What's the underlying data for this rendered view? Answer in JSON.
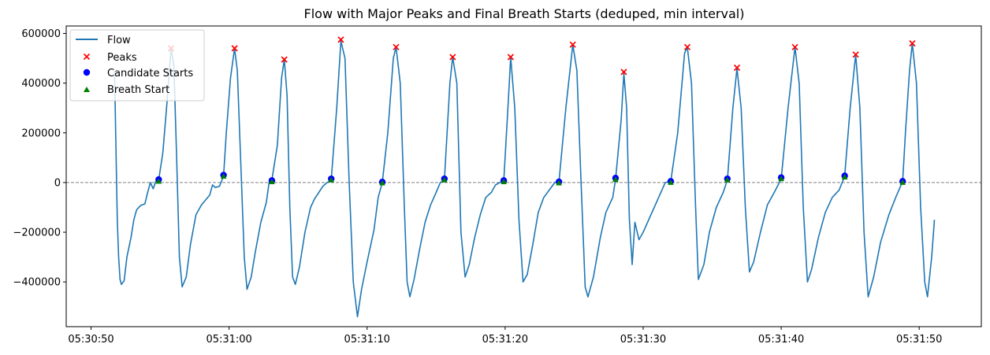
{
  "chart_data": {
    "type": "line",
    "title": "Flow with Major Peaks and Final Breath Starts (deduped, min interval)",
    "xlabel": "",
    "ylabel": "",
    "x_unit": "time (HH:MM:SS)",
    "xlim": [
      "05:30:48.2",
      "05:31:54.5"
    ],
    "ylim": [
      -580000,
      630000
    ],
    "x_ticks": [
      "05:30:50",
      "05:31:00",
      "05:31:10",
      "05:31:20",
      "05:31:30",
      "05:31:40",
      "05:31:50"
    ],
    "y_ticks": [
      600000,
      400000,
      200000,
      0,
      -200000,
      -400000
    ],
    "y_tick_labels": [
      "600000",
      "400000",
      "200000",
      "0",
      "−200000",
      "−400000"
    ],
    "zero_line": {
      "value": 0,
      "style": "dashed",
      "color": "#808080"
    },
    "grid": false,
    "legend_position": "upper-left",
    "colors": {
      "flow": "#1f77b4",
      "peaks": "#ff0000",
      "candidates": "#0000ff",
      "breath_start": "#008000"
    },
    "series": [
      {
        "name": "Flow",
        "type": "line",
        "points": [
          [
            "05:30:51.7",
            450000
          ],
          [
            "05:30:51.9",
            -150000
          ],
          [
            "05:30:52.0",
            -300000
          ],
          [
            "05:30:52.1",
            -390000
          ],
          [
            "05:30:52.2",
            -410000
          ],
          [
            "05:30:52.4",
            -395000
          ],
          [
            "05:30:52.6",
            -300000
          ],
          [
            "05:30:52.9",
            -220000
          ],
          [
            "05:30:53.1",
            -150000
          ],
          [
            "05:30:53.3",
            -110000
          ],
          [
            "05:30:53.6",
            -92000
          ],
          [
            "05:30:53.9",
            -86000
          ],
          [
            "05:30:54.1",
            -40000
          ],
          [
            "05:30:54.3",
            0
          ],
          [
            "05:30:54.5",
            -25000
          ],
          [
            "05:30:54.7",
            5000
          ],
          [
            "05:30:54.9",
            10000
          ],
          [
            "05:30:55.2",
            120000
          ],
          [
            "05:30:55.5",
            320000
          ],
          [
            "05:30:55.8",
            540000
          ],
          [
            "05:30:56.0",
            470000
          ],
          [
            "05:30:56.2",
            100000
          ],
          [
            "05:30:56.4",
            -300000
          ],
          [
            "05:30:56.6",
            -420000
          ],
          [
            "05:30:56.9",
            -380000
          ],
          [
            "05:30:57.2",
            -250000
          ],
          [
            "05:30:57.6",
            -130000
          ],
          [
            "05:30:58.0",
            -90000
          ],
          [
            "05:30:58.3",
            -70000
          ],
          [
            "05:30:58.6",
            -50000
          ],
          [
            "05:30:58.8",
            -10000
          ],
          [
            "05:30:59.0",
            -20000
          ],
          [
            "05:30:59.3",
            -15000
          ],
          [
            "05:30:59.6",
            25000
          ],
          [
            "05:30:59.8",
            200000
          ],
          [
            "05:31:00.1",
            420000
          ],
          [
            "05:31:00.4",
            540000
          ],
          [
            "05:31:00.6",
            450000
          ],
          [
            "05:31:00.9",
            0
          ],
          [
            "05:31:01.1",
            -300000
          ],
          [
            "05:31:01.3",
            -430000
          ],
          [
            "05:31:01.6",
            -380000
          ],
          [
            "05:31:01.9",
            -280000
          ],
          [
            "05:31:02.3",
            -160000
          ],
          [
            "05:31:02.7",
            -80000
          ],
          [
            "05:31:02.9",
            0
          ],
          [
            "05:31:03.1",
            10000
          ],
          [
            "05:31:03.5",
            150000
          ],
          [
            "05:31:03.8",
            420000
          ],
          [
            "05:31:04.0",
            495000
          ],
          [
            "05:31:04.2",
            350000
          ],
          [
            "05:31:04.4",
            -100000
          ],
          [
            "05:31:04.6",
            -380000
          ],
          [
            "05:31:04.8",
            -410000
          ],
          [
            "05:31:05.1",
            -340000
          ],
          [
            "05:31:05.5",
            -200000
          ],
          [
            "05:31:05.9",
            -100000
          ],
          [
            "05:31:06.2",
            -65000
          ],
          [
            "05:31:06.5",
            -40000
          ],
          [
            "05:31:06.8",
            -15000
          ],
          [
            "05:31:07.1",
            0
          ],
          [
            "05:31:07.4",
            10000
          ],
          [
            "05:31:07.8",
            300000
          ],
          [
            "05:31:08.1",
            570000
          ],
          [
            "05:31:08.4",
            500000
          ],
          [
            "05:31:08.7",
            0
          ],
          [
            "05:31:09.0",
            -400000
          ],
          [
            "05:31:09.3",
            -540000
          ],
          [
            "05:31:09.6",
            -430000
          ],
          [
            "05:31:10.0",
            -320000
          ],
          [
            "05:31:10.5",
            -190000
          ],
          [
            "05:31:10.8",
            -60000
          ],
          [
            "05:31:11.1",
            0
          ],
          [
            "05:31:11.5",
            200000
          ],
          [
            "05:31:11.9",
            500000
          ],
          [
            "05:31:12.1",
            545000
          ],
          [
            "05:31:12.4",
            400000
          ],
          [
            "05:31:12.7",
            -100000
          ],
          [
            "05:31:12.9",
            -400000
          ],
          [
            "05:31:13.1",
            -460000
          ],
          [
            "05:31:13.4",
            -390000
          ],
          [
            "05:31:13.8",
            -270000
          ],
          [
            "05:31:14.2",
            -160000
          ],
          [
            "05:31:14.6",
            -90000
          ],
          [
            "05:31:15.0",
            -40000
          ],
          [
            "05:31:15.3",
            0
          ],
          [
            "05:31:15.6",
            10000
          ],
          [
            "05:31:16.0",
            400000
          ],
          [
            "05:31:16.2",
            505000
          ],
          [
            "05:31:16.5",
            400000
          ],
          [
            "05:31:16.8",
            -200000
          ],
          [
            "05:31:17.1",
            -380000
          ],
          [
            "05:31:17.4",
            -330000
          ],
          [
            "05:31:17.8",
            -220000
          ],
          [
            "05:31:18.2",
            -130000
          ],
          [
            "05:31:18.6",
            -60000
          ],
          [
            "05:31:19.0",
            -40000
          ],
          [
            "05:31:19.3",
            -10000
          ],
          [
            "05:31:19.6",
            0
          ],
          [
            "05:31:19.9",
            5000
          ],
          [
            "05:31:20.2",
            300000
          ],
          [
            "05:31:20.4",
            505000
          ],
          [
            "05:31:20.7",
            300000
          ],
          [
            "05:31:21.0",
            -150000
          ],
          [
            "05:31:21.3",
            -400000
          ],
          [
            "05:31:21.6",
            -370000
          ],
          [
            "05:31:22.0",
            -250000
          ],
          [
            "05:31:22.4",
            -120000
          ],
          [
            "05:31:22.8",
            -60000
          ],
          [
            "05:31:23.2",
            -30000
          ],
          [
            "05:31:23.6",
            0
          ],
          [
            "05:31:23.9",
            5000
          ],
          [
            "05:31:24.4",
            300000
          ],
          [
            "05:31:24.9",
            555000
          ],
          [
            "05:31:25.2",
            450000
          ],
          [
            "05:31:25.5",
            0
          ],
          [
            "05:31:25.8",
            -420000
          ],
          [
            "05:31:26.0",
            -460000
          ],
          [
            "05:31:26.4",
            -380000
          ],
          [
            "05:31:26.9",
            -220000
          ],
          [
            "05:31:27.3",
            -120000
          ],
          [
            "05:31:27.8",
            -60000
          ],
          [
            "05:31:28.0",
            15000
          ],
          [
            "05:31:28.4",
            250000
          ],
          [
            "05:31:28.6",
            440000
          ],
          [
            "05:31:28.8",
            300000
          ],
          [
            "05:31:29.0",
            -150000
          ],
          [
            "05:31:29.2",
            -330000
          ],
          [
            "05:31:29.4",
            -160000
          ],
          [
            "05:31:29.7",
            -230000
          ],
          [
            "05:31:30.0",
            -200000
          ],
          [
            "05:31:30.4",
            -150000
          ],
          [
            "05:31:30.8",
            -100000
          ],
          [
            "05:31:31.2",
            -50000
          ],
          [
            "05:31:31.6",
            0
          ],
          [
            "05:31:32.0",
            5000
          ],
          [
            "05:31:32.5",
            200000
          ],
          [
            "05:31:33.0",
            520000
          ],
          [
            "05:31:33.2",
            545000
          ],
          [
            "05:31:33.5",
            400000
          ],
          [
            "05:31:33.8",
            -100000
          ],
          [
            "05:31:34.0",
            -390000
          ],
          [
            "05:31:34.4",
            -330000
          ],
          [
            "05:31:34.8",
            -200000
          ],
          [
            "05:31:35.3",
            -100000
          ],
          [
            "05:31:35.8",
            -40000
          ],
          [
            "05:31:36.1",
            10000
          ],
          [
            "05:31:36.5",
            300000
          ],
          [
            "05:31:36.8",
            460000
          ],
          [
            "05:31:37.1",
            300000
          ],
          [
            "05:31:37.4",
            -100000
          ],
          [
            "05:31:37.7",
            -360000
          ],
          [
            "05:31:38.0",
            -320000
          ],
          [
            "05:31:38.5",
            -200000
          ],
          [
            "05:31:39.0",
            -90000
          ],
          [
            "05:31:39.5",
            -40000
          ],
          [
            "05:31:40.0",
            15000
          ],
          [
            "05:31:40.5",
            300000
          ],
          [
            "05:31:41.0",
            545000
          ],
          [
            "05:31:41.3",
            400000
          ],
          [
            "05:31:41.6",
            -100000
          ],
          [
            "05:31:41.9",
            -400000
          ],
          [
            "05:31:42.2",
            -350000
          ],
          [
            "05:31:42.7",
            -220000
          ],
          [
            "05:31:43.2",
            -120000
          ],
          [
            "05:31:43.7",
            -60000
          ],
          [
            "05:31:44.2",
            -30000
          ],
          [
            "05:31:44.6",
            25000
          ],
          [
            "05:31:45.0",
            300000
          ],
          [
            "05:31:45.4",
            515000
          ],
          [
            "05:31:45.7",
            300000
          ],
          [
            "05:31:46.0",
            -200000
          ],
          [
            "05:31:46.3",
            -460000
          ],
          [
            "05:31:46.7",
            -380000
          ],
          [
            "05:31:47.2",
            -240000
          ],
          [
            "05:31:47.8",
            -130000
          ],
          [
            "05:31:48.3",
            -60000
          ],
          [
            "05:31:48.8",
            5000
          ],
          [
            "05:31:49.0",
            200000
          ],
          [
            "05:31:49.3",
            450000
          ],
          [
            "05:31:49.5",
            560000
          ],
          [
            "05:31:49.8",
            400000
          ],
          [
            "05:31:50.1",
            -100000
          ],
          [
            "05:31:50.4",
            -400000
          ],
          [
            "05:31:50.6",
            -460000
          ],
          [
            "05:31:50.9",
            -300000
          ],
          [
            "05:31:51.1",
            -150000
          ]
        ]
      },
      {
        "name": "Peaks",
        "type": "scatter",
        "marker": "x",
        "points": [
          [
            "05:30:55.8",
            540000
          ],
          [
            "05:31:00.4",
            540000
          ],
          [
            "05:31:04.0",
            495000
          ],
          [
            "05:31:08.1",
            575000
          ],
          [
            "05:31:12.1",
            545000
          ],
          [
            "05:31:16.2",
            505000
          ],
          [
            "05:31:20.4",
            505000
          ],
          [
            "05:31:24.9",
            555000
          ],
          [
            "05:31:28.6",
            445000
          ],
          [
            "05:31:33.2",
            545000
          ],
          [
            "05:31:36.8",
            462000
          ],
          [
            "05:31:41.0",
            545000
          ],
          [
            "05:31:45.4",
            515000
          ],
          [
            "05:31:49.5",
            560000
          ]
        ]
      },
      {
        "name": "Candidate Starts",
        "type": "scatter",
        "marker": "circle",
        "points": [
          [
            "05:30:54.9",
            12000
          ],
          [
            "05:30:59.6",
            30000
          ],
          [
            "05:31:03.1",
            8000
          ],
          [
            "05:31:07.4",
            15000
          ],
          [
            "05:31:11.1",
            2000
          ],
          [
            "05:31:15.6",
            15000
          ],
          [
            "05:31:19.9",
            8000
          ],
          [
            "05:31:23.9",
            3000
          ],
          [
            "05:31:28.0",
            18000
          ],
          [
            "05:31:32.0",
            5000
          ],
          [
            "05:31:36.1",
            15000
          ],
          [
            "05:31:40.0",
            20000
          ],
          [
            "05:31:44.6",
            27000
          ],
          [
            "05:31:48.8",
            5000
          ]
        ]
      },
      {
        "name": "Breath Start",
        "type": "scatter",
        "marker": "triangle",
        "points": [
          [
            "05:30:54.9",
            5000
          ],
          [
            "05:30:59.6",
            25000
          ],
          [
            "05:31:03.1",
            3000
          ],
          [
            "05:31:07.4",
            10000
          ],
          [
            "05:31:11.1",
            -2000
          ],
          [
            "05:31:15.6",
            10000
          ],
          [
            "05:31:19.9",
            3000
          ],
          [
            "05:31:23.9",
            -2000
          ],
          [
            "05:31:28.0",
            12000
          ],
          [
            "05:31:32.0",
            0
          ],
          [
            "05:31:36.1",
            10000
          ],
          [
            "05:31:40.0",
            15000
          ],
          [
            "05:31:44.6",
            22000
          ],
          [
            "05:31:48.8",
            0
          ]
        ]
      }
    ]
  }
}
